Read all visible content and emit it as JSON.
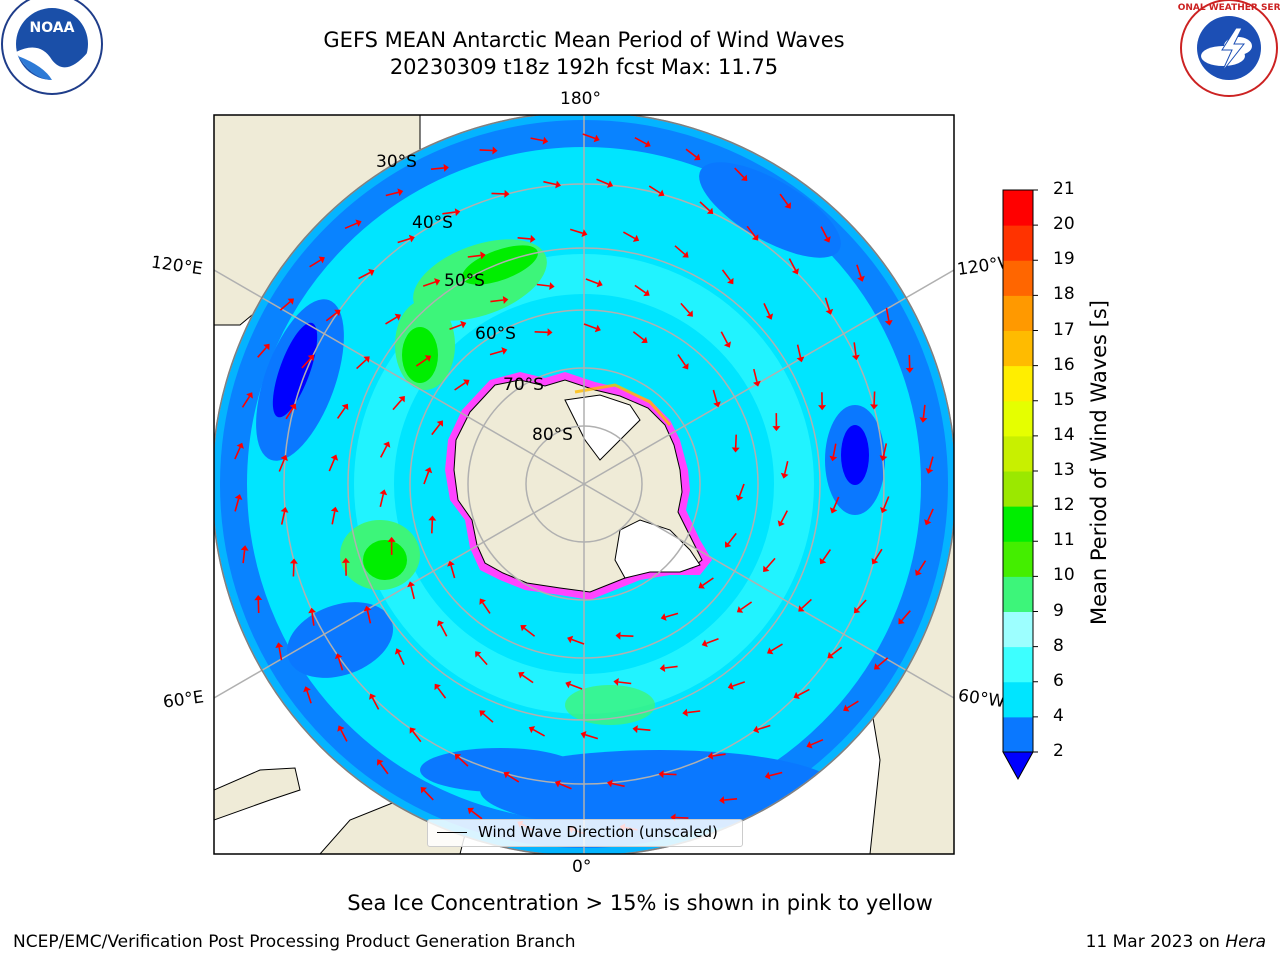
{
  "title": {
    "line1": "GEFS MEAN Antarctic Mean Period of Wind Waves",
    "line2": "20230309 t18z 192h fcst   Max: 11.75"
  },
  "map": {
    "projection": "south-polar-stereographic",
    "lon_labels": {
      "top": "180°",
      "bottom": "0°",
      "left_upper": "120°E",
      "right_upper": "120°W",
      "left_lower": "60°E",
      "right_lower": "60°W"
    },
    "lat_labels": [
      "30°S",
      "40°S",
      "50°S",
      "60°S",
      "70°S",
      "80°S"
    ],
    "colors": {
      "land": "#efebd7",
      "ice_edge": "#ff44ff",
      "arrow": "#ff0000",
      "grid": "#b0b0b0"
    }
  },
  "legend": {
    "label": "Wind Wave Direction (unscaled)"
  },
  "colorbar": {
    "label": "Mean Period of Wind Waves [s]",
    "ticks": [
      "2",
      "4",
      "6",
      "8",
      "9",
      "10",
      "11",
      "12",
      "13",
      "14",
      "15",
      "16",
      "17",
      "18",
      "19",
      "20",
      "21"
    ],
    "colors": [
      "#0000ff",
      "#0a78ff",
      "#00e5ff",
      "#3dffff",
      "#9dffff",
      "#3df57a",
      "#44ee00",
      "#00ee00",
      "#9be800",
      "#c8f000",
      "#e5ff00",
      "#ffee00",
      "#ffbb00",
      "#ff9900",
      "#ff6600",
      "#ff3300",
      "#ff0000"
    ]
  },
  "caption": "Sea Ice Concentration > 15% is shown in pink to yellow",
  "footer": {
    "left": "NCEP/EMC/Verification Post Processing Product Generation Branch",
    "right_prefix": "11 Mar 2023 on ",
    "right_host": "Hera"
  },
  "logos": {
    "left": "NOAA",
    "right": "NATIONAL WEATHER SERVICE"
  }
}
